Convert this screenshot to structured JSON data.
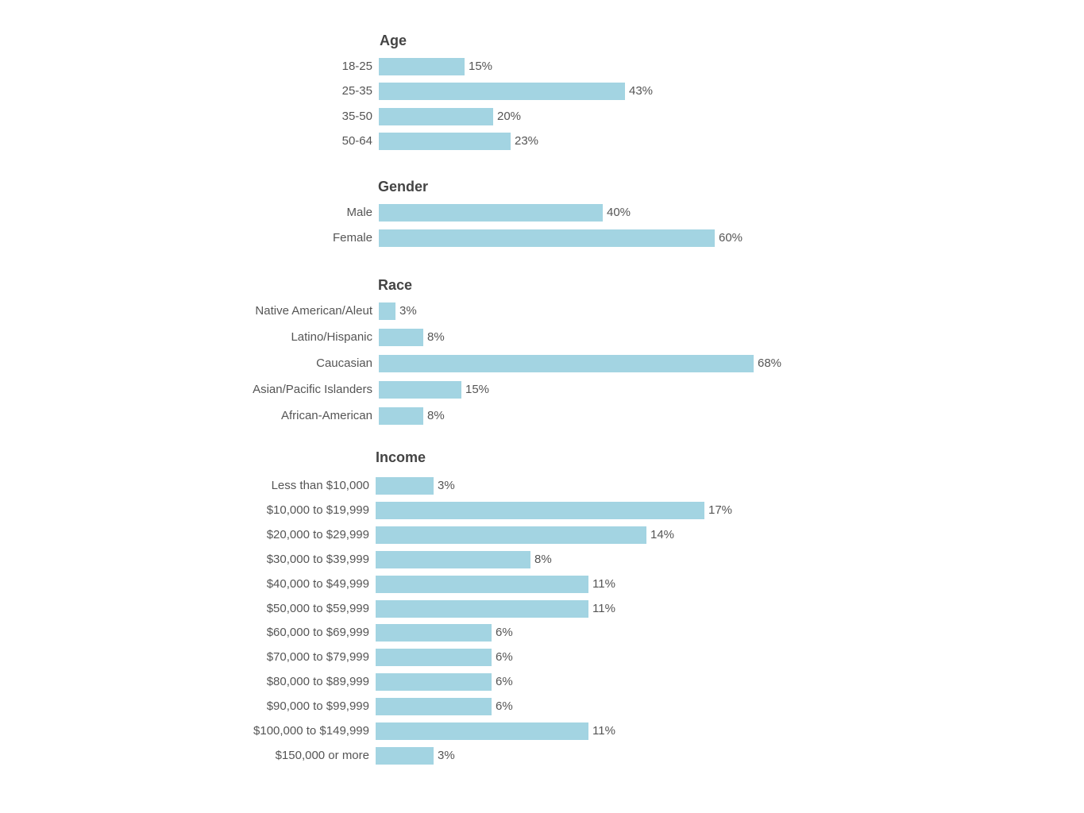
{
  "colors": {
    "bar": "#a3d4e2",
    "text": "#555555",
    "title": "#444444"
  },
  "chart_data": [
    {
      "type": "bar",
      "orientation": "horizontal",
      "title": "Age",
      "categories": [
        "18-25",
        "25-35",
        "35-50",
        "50-64"
      ],
      "values": [
        15,
        43,
        20,
        23
      ],
      "value_labels": [
        "15%",
        "43%",
        "20%",
        "23%"
      ],
      "unit": "%",
      "grid": false,
      "legend": "none"
    },
    {
      "type": "bar",
      "orientation": "horizontal",
      "title": "Gender",
      "categories": [
        "Male",
        "Female"
      ],
      "values": [
        40,
        60
      ],
      "value_labels": [
        "40%",
        "60%"
      ],
      "unit": "%",
      "grid": false,
      "legend": "none"
    },
    {
      "type": "bar",
      "orientation": "horizontal",
      "title": "Race",
      "categories": [
        "Native American/Aleut",
        "Latino/Hispanic",
        "Caucasian",
        "Asian/Pacific Islanders",
        "African-American"
      ],
      "values": [
        3,
        8,
        68,
        15,
        8
      ],
      "value_labels": [
        "3%",
        "8%",
        "68%",
        "15%",
        "8%"
      ],
      "unit": "%",
      "grid": false,
      "legend": "none"
    },
    {
      "type": "bar",
      "orientation": "horizontal",
      "title": "Income",
      "categories": [
        "Less than $10,000",
        "$10,000 to $19,999",
        "$20,000 to $29,999",
        "$30,000 to $39,999",
        "$40,000 to $49,999",
        "$50,000 to $59,999",
        "$60,000 to $69,999",
        "$70,000 to $79,999",
        "$80,000 to $89,999",
        "$90,000 to $99,999",
        "$100,000 to $149,999",
        "$150,000 or more"
      ],
      "values": [
        3,
        17,
        14,
        8,
        11,
        11,
        6,
        6,
        6,
        6,
        11,
        3
      ],
      "value_labels": [
        "3%",
        "17%",
        "14%",
        "8%",
        "11%",
        "11%",
        "6%",
        "6%",
        "6%",
        "6%",
        "11%",
        "3%"
      ],
      "unit": "%",
      "grid": false,
      "legend": "none"
    }
  ]
}
